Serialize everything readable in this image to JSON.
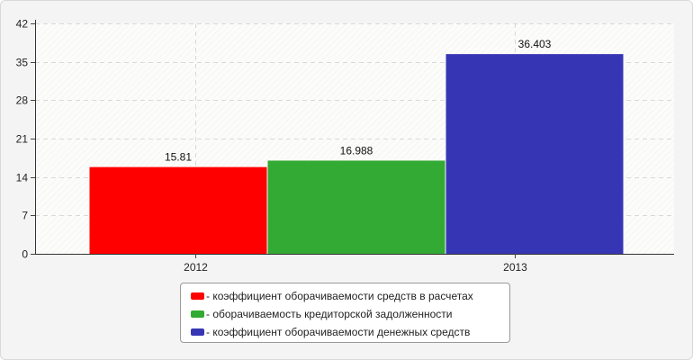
{
  "chart_data": {
    "type": "bar",
    "categories": [
      "2012",
      "2013"
    ],
    "bars": [
      {
        "category": "2012",
        "series": "коэффициент оборачиваемости средств в расчетах",
        "value": 15.81,
        "label": "15.81",
        "color": "#ff0000"
      },
      {
        "category": "2012",
        "series": "оборачиваемость кредиторской задолженности",
        "value": 16.988,
        "label": "16.988",
        "color": "#33aa33"
      },
      {
        "category": "2013",
        "series": "коэффициент оборачиваемости денежных средств",
        "value": 36.403,
        "label": "36.403",
        "color": "#3636b5"
      }
    ],
    "series": [
      {
        "name": "коэффициент оборачиваемости средств в расчетах",
        "color": "#ff0000"
      },
      {
        "name": "оборачиваемость кредиторской задолженности",
        "color": "#33aa33"
      },
      {
        "name": "коэффициент оборачиваемости денежных средств",
        "color": "#3636b5"
      }
    ],
    "yticks": [
      0,
      7,
      14,
      21,
      28,
      35,
      42
    ],
    "ylim": [
      0,
      42
    ],
    "grid": true,
    "legend_position": "bottom-center",
    "title": "",
    "xlabel": "",
    "ylabel": ""
  },
  "legend": {
    "items": [
      {
        "label": "- коэффициент оборачиваемости средств в расчетах",
        "color": "#ff0000"
      },
      {
        "label": "- оборачиваемость кредиторской задолженности",
        "color": "#33aa33"
      },
      {
        "label": "- коэффициент оборачиваемости денежных средств",
        "color": "#3636b5"
      }
    ]
  }
}
